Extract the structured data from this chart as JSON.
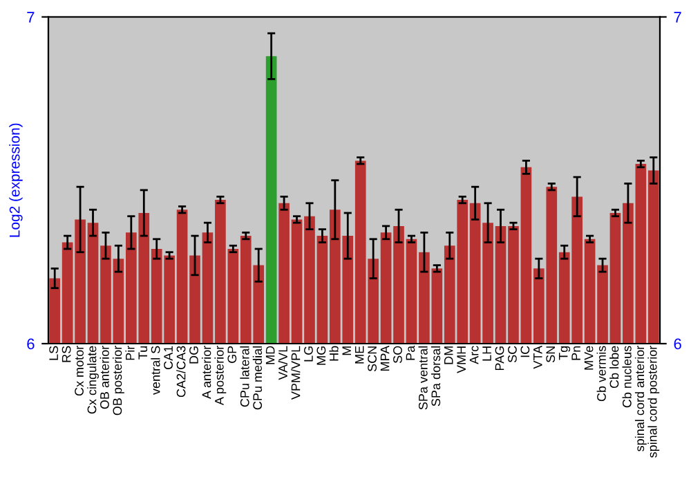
{
  "chart_data": {
    "type": "bar",
    "ylabel": "Log2 (expression)",
    "categories": [
      "LS",
      "RS",
      "Cx motor",
      "Cx cingulate",
      "OB anterior",
      "OB posterior",
      "Pir",
      "Tu",
      "ventral S",
      "CA1",
      "CA2/CA3",
      "DG",
      "A anterior",
      "A posterior",
      "GP",
      "CPu lateral",
      "CPu medial",
      "MD",
      "VA/VL",
      "VPM/VPL",
      "LG",
      "MG",
      "Hb",
      "M",
      "ME",
      "SCN",
      "MPA",
      "SO",
      "Pa",
      "SPa ventral",
      "SPa dorsal",
      "DM",
      "VMH",
      "Arc",
      "LH",
      "PAG",
      "SC",
      "IC",
      "VTA",
      "SN",
      "Tg",
      "Pn",
      "MVe",
      "Cb vermis",
      "Cb lobe",
      "Cb nucleus",
      "spinal cord anterior",
      "spinal cord posterior"
    ],
    "values": [
      6.2,
      6.31,
      6.38,
      6.37,
      6.3,
      6.26,
      6.34,
      6.4,
      6.29,
      6.27,
      6.41,
      6.27,
      6.34,
      6.44,
      6.29,
      6.33,
      6.24,
      6.88,
      6.43,
      6.38,
      6.39,
      6.33,
      6.41,
      6.33,
      6.56,
      6.26,
      6.34,
      6.36,
      6.32,
      6.28,
      6.23,
      6.3,
      6.44,
      6.43,
      6.37,
      6.36,
      6.36,
      6.54,
      6.23,
      6.48,
      6.28,
      6.45,
      6.32,
      6.24,
      6.4,
      6.43,
      6.55,
      6.53
    ],
    "errors": [
      0.03,
      0.02,
      0.1,
      0.04,
      0.04,
      0.04,
      0.05,
      0.07,
      0.03,
      0.01,
      0.01,
      0.06,
      0.03,
      0.01,
      0.01,
      0.01,
      0.05,
      0.07,
      0.02,
      0.01,
      0.04,
      0.02,
      0.09,
      0.07,
      0.01,
      0.06,
      0.02,
      0.05,
      0.01,
      0.06,
      0.01,
      0.04,
      0.01,
      0.05,
      0.06,
      0.05,
      0.01,
      0.02,
      0.03,
      0.01,
      0.02,
      0.06,
      0.01,
      0.02,
      0.01,
      0.06,
      0.01,
      0.04
    ],
    "colors": [
      "#b83232",
      "#b83232",
      "#b83232",
      "#b83232",
      "#b83232",
      "#b83232",
      "#b83232",
      "#b83232",
      "#b83232",
      "#b83232",
      "#b83232",
      "#b83232",
      "#b83232",
      "#b83232",
      "#b83232",
      "#b83232",
      "#b83232",
      "#2e9e2e",
      "#b83232",
      "#b83232",
      "#b83232",
      "#b83232",
      "#b83232",
      "#b83232",
      "#b83232",
      "#b83232",
      "#b83232",
      "#b83232",
      "#b83232",
      "#b83232",
      "#b83232",
      "#b83232",
      "#b83232",
      "#b83232",
      "#b83232",
      "#b83232",
      "#b83232",
      "#b83232",
      "#b83232",
      "#b83232",
      "#b83232",
      "#b83232",
      "#b83232",
      "#b83232",
      "#b83232",
      "#b83232",
      "#b83232",
      "#b83232"
    ],
    "ylim": [
      6,
      7
    ],
    "yticks": [
      6,
      7
    ],
    "y2lim": [
      6,
      7
    ],
    "y2ticks": [
      6,
      7
    ],
    "grid": false
  }
}
